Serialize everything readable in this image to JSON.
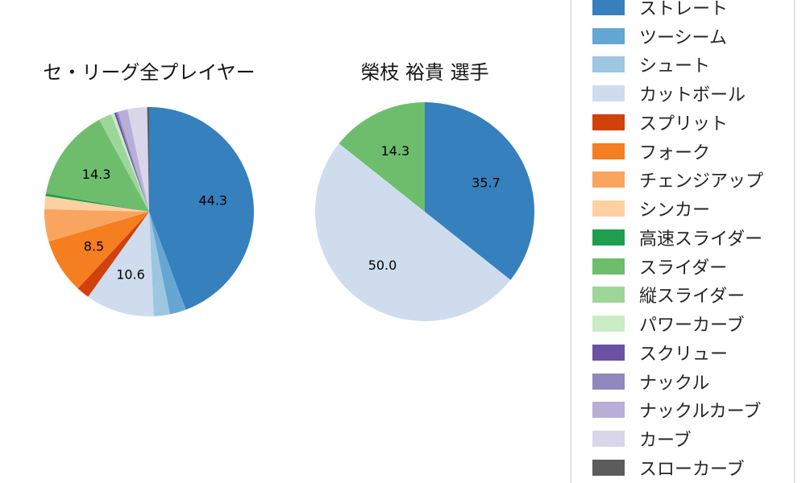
{
  "chart_data": [
    {
      "type": "pie",
      "title": "セ・リーグ全プレイヤー",
      "categories": [
        "ストレート",
        "ツーシーム",
        "シュート",
        "カットボール",
        "スプリット",
        "フォーク",
        "チェンジアップ",
        "シンカー",
        "高速スライダー",
        "スライダー",
        "縦スライダー",
        "パワーカーブ",
        "スクリュー",
        "ナックル",
        "ナックルカーブ",
        "カーブ",
        "スローカーブ"
      ],
      "values": [
        44.3,
        2.5,
        2.5,
        10.6,
        2.0,
        8.5,
        5.0,
        2.0,
        0.4,
        14.3,
        2.0,
        0.5,
        0.3,
        0.3,
        1.5,
        3.0,
        0.3
      ],
      "colors": [
        "#3580bd",
        "#64a7d4",
        "#9dc6e0",
        "#cedcee",
        "#d1410c",
        "#f57e20",
        "#faa55f",
        "#fdd0a2",
        "#1f9e4e",
        "#6dbd6d",
        "#9ed69a",
        "#c9ecc4",
        "#6a51a3",
        "#9087bf",
        "#b7afd6",
        "#d9d6ea",
        "#5c5c5c"
      ],
      "visible_value_labels": [
        "44.3",
        "10.6",
        "8.5",
        "14.3"
      ],
      "label_threshold": 6,
      "start_angle": 0,
      "direction": "clockwise",
      "legend_position": "right"
    },
    {
      "type": "pie",
      "title": "榮枝 裕貴 選手",
      "categories": [
        "ストレート",
        "ツーシーム",
        "シュート",
        "カットボール",
        "スプリット",
        "フォーク",
        "チェンジアップ",
        "シンカー",
        "高速スライダー",
        "スライダー",
        "縦スライダー",
        "パワーカーブ",
        "スクリュー",
        "ナックル",
        "ナックルカーブ",
        "カーブ",
        "スローカーブ"
      ],
      "values": [
        35.7,
        0,
        0,
        50.0,
        0,
        0,
        0,
        0,
        0,
        14.3,
        0,
        0,
        0,
        0,
        0,
        0,
        0
      ],
      "colors": [
        "#3580bd",
        "#64a7d4",
        "#9dc6e0",
        "#cedcee",
        "#d1410c",
        "#f57e20",
        "#faa55f",
        "#fdd0a2",
        "#1f9e4e",
        "#6dbd6d",
        "#9ed69a",
        "#c9ecc4",
        "#6a51a3",
        "#9087bf",
        "#b7afd6",
        "#d9d6ea",
        "#5c5c5c"
      ],
      "visible_value_labels": [
        "35.7",
        "50.0",
        "14.3"
      ],
      "label_threshold": 6,
      "start_angle": 0,
      "direction": "clockwise",
      "legend_position": "right"
    }
  ],
  "legend": {
    "items": [
      {
        "label": "ストレート",
        "color": "#3580bd"
      },
      {
        "label": "ツーシーム",
        "color": "#64a7d4"
      },
      {
        "label": "シュート",
        "color": "#9dc6e0"
      },
      {
        "label": "カットボール",
        "color": "#cedcee"
      },
      {
        "label": "スプリット",
        "color": "#d1410c"
      },
      {
        "label": "フォーク",
        "color": "#f57e20"
      },
      {
        "label": "チェンジアップ",
        "color": "#faa55f"
      },
      {
        "label": "シンカー",
        "color": "#fdd0a2"
      },
      {
        "label": "高速スライダー",
        "color": "#1f9e4e"
      },
      {
        "label": "スライダー",
        "color": "#6dbd6d"
      },
      {
        "label": "縦スライダー",
        "color": "#9ed69a"
      },
      {
        "label": "パワーカーブ",
        "color": "#c9ecc4"
      },
      {
        "label": "スクリュー",
        "color": "#6a51a3"
      },
      {
        "label": "ナックル",
        "color": "#9087bf"
      },
      {
        "label": "ナックルカーブ",
        "color": "#b7afd6"
      },
      {
        "label": "カーブ",
        "color": "#d9d6ea"
      },
      {
        "label": "スローカーブ",
        "color": "#5c5c5c"
      }
    ]
  },
  "page": {
    "background_color": "#ffffff"
  }
}
